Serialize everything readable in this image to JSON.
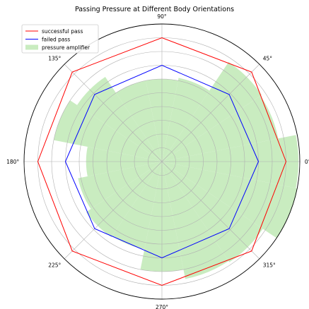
{
  "chart_data": {
    "type": "polar",
    "title": "Passing Pressure at Different Body Orientations",
    "theta_tick_labels": [
      "0°",
      "45°",
      "90°",
      "135°",
      "180°",
      "225°",
      "270°",
      "315°"
    ],
    "theta_tick_values": [
      0,
      45,
      90,
      135,
      180,
      225,
      270,
      315
    ],
    "r_range": [
      0,
      1
    ],
    "r_grid": [
      0.1,
      0.2,
      0.3,
      0.4,
      0.5,
      0.6,
      0.7,
      0.8,
      0.9,
      1.0
    ],
    "r_tick_labels_shown": false,
    "grid": true,
    "legend_position": "top-left",
    "series": [
      {
        "name": "successful pass",
        "kind": "line",
        "color": "#ff0000",
        "theta": [
          0,
          45,
          90,
          135,
          180,
          225,
          270,
          315
        ],
        "r": [
          0.9,
          0.92,
          0.9,
          0.92,
          0.9,
          0.92,
          0.9,
          0.92
        ]
      },
      {
        "name": "failed pass",
        "kind": "line",
        "color": "#0000ff",
        "theta": [
          0,
          45,
          90,
          135,
          180,
          225,
          270,
          315
        ],
        "r": [
          0.7,
          0.69,
          0.7,
          0.69,
          0.7,
          0.69,
          0.7,
          0.69
        ]
      },
      {
        "name": "pressure amplifier",
        "kind": "filled-bars",
        "color": "#c9ecc0",
        "theta": [
          0,
          22.5,
          45,
          67.5,
          90,
          112.5,
          135,
          157.5,
          180,
          202.5,
          225,
          247.5,
          270,
          292.5,
          315,
          337.5
        ],
        "r": [
          0.99,
          0.86,
          0.87,
          0.62,
          0.6,
          0.6,
          0.74,
          0.8,
          0.55,
          0.62,
          0.66,
          0.65,
          0.8,
          0.87,
          0.88,
          1.0
        ]
      }
    ]
  }
}
